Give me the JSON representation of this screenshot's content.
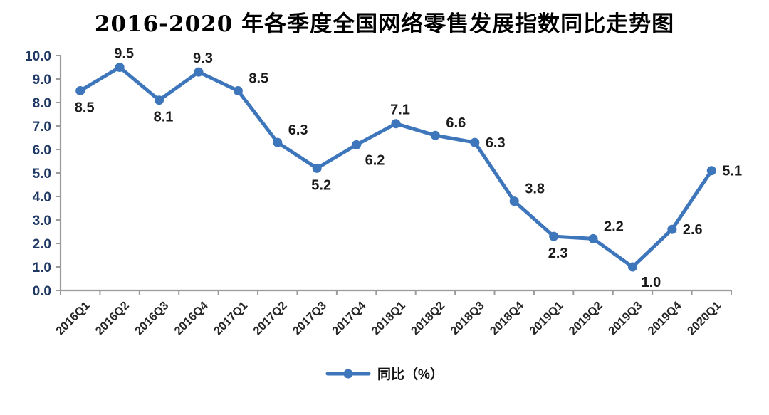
{
  "page": {
    "title": "2016-2020 年各季度全国网络零售发展指数同比走势图"
  },
  "chart_data": {
    "type": "line",
    "title": "2016-2020 年各季度全国网络零售发展指数同比走势图",
    "categories": [
      "2016Q1",
      "2016Q2",
      "2016Q3",
      "2016Q4",
      "2017Q1",
      "2017Q2",
      "2017Q3",
      "2017Q4",
      "2018Q1",
      "2018Q2",
      "2018Q3",
      "2018Q4",
      "2019Q1",
      "2019Q2",
      "2019Q3",
      "2019Q4",
      "2020Q1"
    ],
    "series": [
      {
        "name": "同比（%）",
        "values": [
          8.5,
          9.5,
          8.1,
          9.3,
          8.5,
          6.3,
          5.2,
          6.2,
          7.1,
          6.6,
          6.3,
          3.8,
          2.3,
          2.2,
          1.0,
          2.6,
          5.1
        ]
      }
    ],
    "data_labels": [
      "8.5",
      "9.5",
      "8.1",
      "9.3",
      "8.5",
      "6.3",
      "5.2",
      "6.2",
      "7.1",
      "6.6",
      "6.3",
      "3.8",
      "2.3",
      "2.2",
      "1.0",
      "2.6",
      "5.1"
    ],
    "label_positions": [
      "below",
      "above",
      "below",
      "above",
      "above-right",
      "above-right",
      "below",
      "below-right",
      "above",
      "above-right",
      "right",
      "above-right",
      "below",
      "above-right",
      "below-right",
      "right",
      "right"
    ],
    "xlabel": "",
    "ylabel": "",
    "ylim": [
      0,
      10
    ],
    "ytick_labels": [
      "0.0",
      "1.0",
      "2.0",
      "3.0",
      "4.0",
      "5.0",
      "6.0",
      "7.0",
      "8.0",
      "9.0",
      "10.0"
    ],
    "grid": false,
    "legend_position": "bottom",
    "legend_label": "同比（%）",
    "x_tick_rotation_deg": 45
  },
  "colors": {
    "line": "#3E76BC",
    "marker": "#3E76BC",
    "axis": "#9B9B9B",
    "ytick_text": "#1F3864",
    "xtick_text": "#262626",
    "data_label_text": "#1A1A1A",
    "title_text": "#000000",
    "background": "#FFFFFF"
  }
}
